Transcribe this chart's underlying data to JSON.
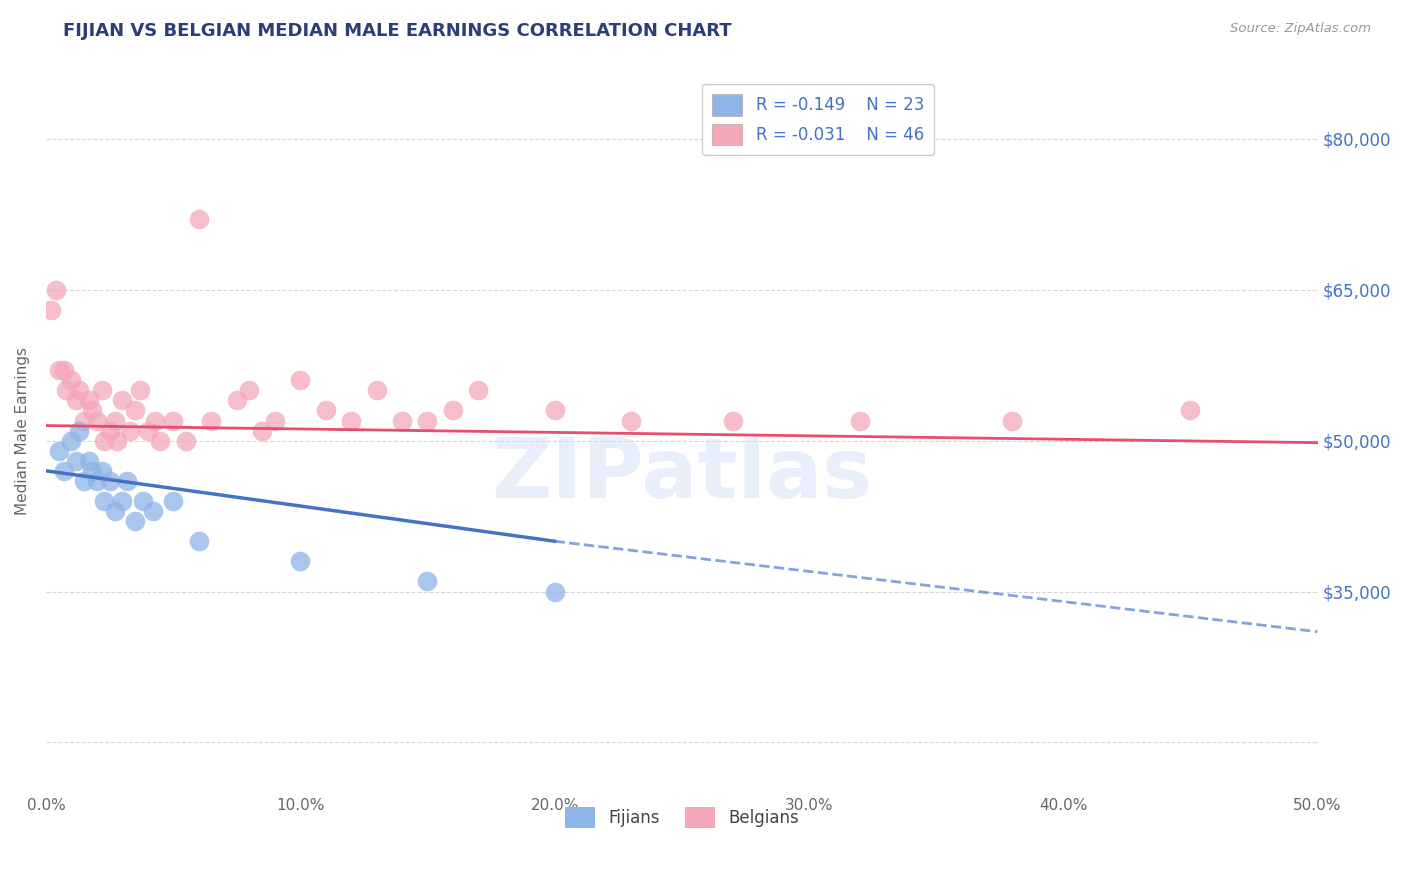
{
  "title": "FIJIAN VS BELGIAN MEDIAN MALE EARNINGS CORRELATION CHART",
  "title_color": "#2c3e7a",
  "source_text": "Source: ZipAtlas.com",
  "ylabel": "Median Male Earnings",
  "xlim": [
    0.0,
    0.5
  ],
  "ylim": [
    15000,
    87000
  ],
  "yticks": [
    20000,
    35000,
    50000,
    65000,
    80000
  ],
  "xticks": [
    0.0,
    0.1,
    0.2,
    0.3,
    0.4,
    0.5
  ],
  "xtick_labels": [
    "0.0%",
    "10.0%",
    "20.0%",
    "30.0%",
    "40.0%",
    "50.0%"
  ],
  "background_color": "#ffffff",
  "grid_color": "#cccccc",
  "fijian_color": "#8fb4e8",
  "belgian_color": "#f4a7b9",
  "fijian_line_color": "#4472c4",
  "belgian_line_color": "#e84c6e",
  "legend_r_fijian": "R = -0.149",
  "legend_n_fijian": "N = 23",
  "legend_r_belgian": "R = -0.031",
  "legend_n_belgian": "N = 46",
  "fijian_x": [
    0.005,
    0.007,
    0.01,
    0.012,
    0.013,
    0.015,
    0.017,
    0.018,
    0.02,
    0.022,
    0.023,
    0.025,
    0.027,
    0.03,
    0.032,
    0.035,
    0.038,
    0.042,
    0.05,
    0.06,
    0.1,
    0.15,
    0.2
  ],
  "fijian_y": [
    49000,
    47000,
    50000,
    48000,
    51000,
    46000,
    48000,
    47000,
    46000,
    47000,
    44000,
    46000,
    43000,
    44000,
    46000,
    42000,
    44000,
    43000,
    44000,
    40000,
    38000,
    36000,
    35000
  ],
  "belgian_x": [
    0.002,
    0.004,
    0.005,
    0.007,
    0.008,
    0.01,
    0.012,
    0.013,
    0.015,
    0.017,
    0.018,
    0.02,
    0.022,
    0.023,
    0.025,
    0.027,
    0.028,
    0.03,
    0.033,
    0.035,
    0.037,
    0.04,
    0.043,
    0.045,
    0.05,
    0.055,
    0.06,
    0.065,
    0.075,
    0.08,
    0.085,
    0.09,
    0.1,
    0.11,
    0.12,
    0.13,
    0.14,
    0.15,
    0.16,
    0.17,
    0.2,
    0.23,
    0.27,
    0.32,
    0.38,
    0.45
  ],
  "belgian_y": [
    63000,
    65000,
    57000,
    57000,
    55000,
    56000,
    54000,
    55000,
    52000,
    54000,
    53000,
    52000,
    55000,
    50000,
    51000,
    52000,
    50000,
    54000,
    51000,
    53000,
    55000,
    51000,
    52000,
    50000,
    52000,
    50000,
    72000,
    52000,
    54000,
    55000,
    51000,
    52000,
    56000,
    53000,
    52000,
    55000,
    52000,
    52000,
    53000,
    55000,
    53000,
    52000,
    52000,
    52000,
    52000,
    53000
  ],
  "fijian_trendline_x0": 0.0,
  "fijian_trendline_x1": 0.2,
  "fijian_trendline_x2": 0.5,
  "fijian_trendline_y0": 47000,
  "fijian_trendline_y1": 40000,
  "fijian_trendline_y2": 31000,
  "belgian_trendline_x0": 0.0,
  "belgian_trendline_x1": 0.5,
  "belgian_trendline_y0": 51500,
  "belgian_trendline_y1": 49800,
  "right_ytick_labels": [
    "$80,000",
    "$65,000",
    "$50,000",
    "$35,000"
  ],
  "right_ytick_positions": [
    80000,
    65000,
    50000,
    35000
  ],
  "right_ytick_color": "#4472c4"
}
